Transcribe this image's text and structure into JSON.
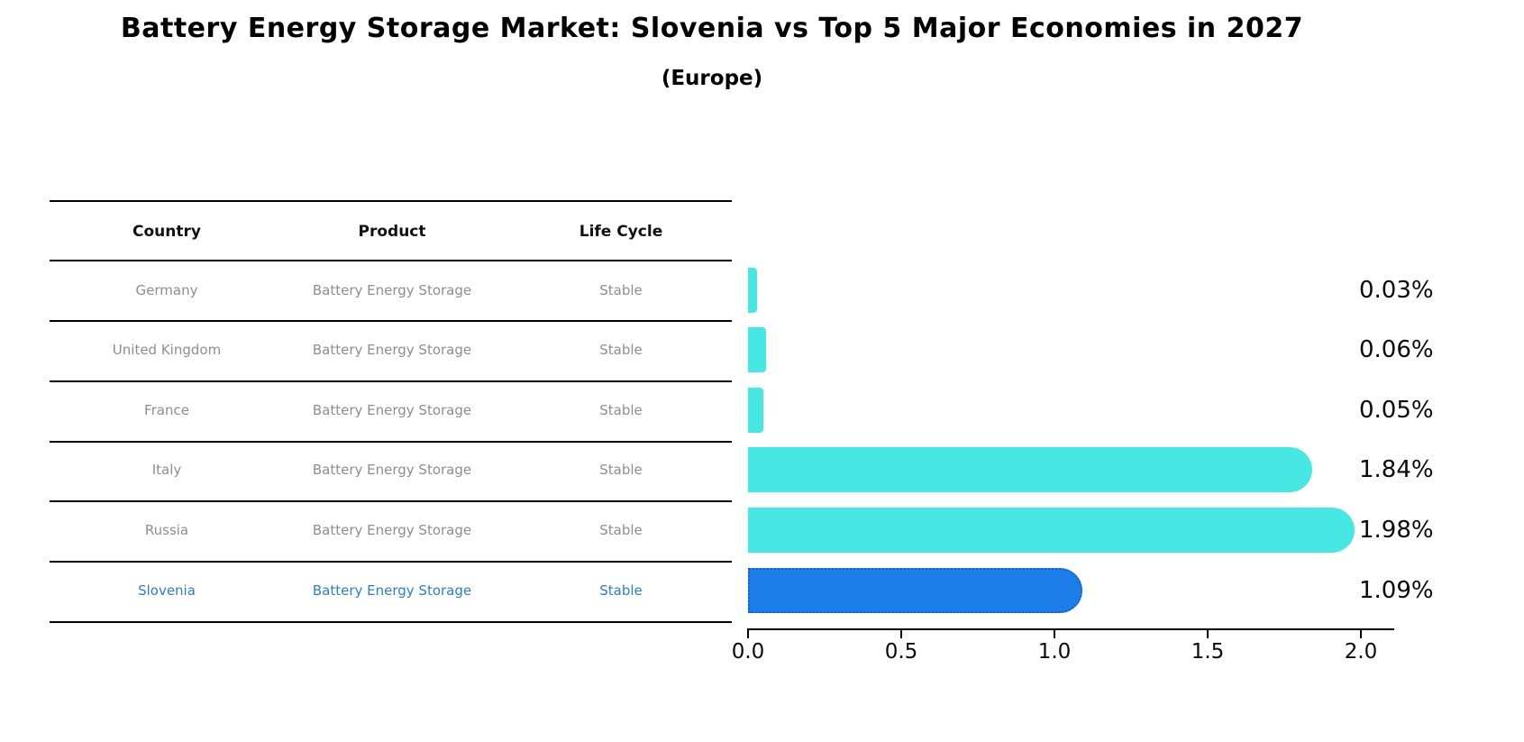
{
  "title": "Battery Energy Storage Market: Slovenia vs Top 5 Major Economies in 2027",
  "subtitle": "(Europe)",
  "table": {
    "headers": {
      "country": "Country",
      "product": "Product",
      "life_cycle": "Life Cycle"
    },
    "rows": [
      {
        "country": "Germany",
        "product": "Battery Energy Storage",
        "life_cycle": "Stable",
        "highlight": false
      },
      {
        "country": "United Kingdom",
        "product": "Battery Energy Storage",
        "life_cycle": "Stable",
        "highlight": false
      },
      {
        "country": "France",
        "product": "Battery Energy Storage",
        "life_cycle": "Stable",
        "highlight": false
      },
      {
        "country": "Italy",
        "product": "Battery Energy Storage",
        "life_cycle": "Stable",
        "highlight": false
      },
      {
        "country": "Russia",
        "product": "Battery Energy Storage",
        "life_cycle": "Stable",
        "highlight": false
      },
      {
        "country": "Slovenia",
        "product": "Battery Energy Storage",
        "life_cycle": "Stable",
        "highlight": true
      }
    ]
  },
  "chart_data": {
    "type": "bar",
    "orientation": "horizontal",
    "title": "Battery Energy Storage Market: Slovenia vs Top 5 Major Economies in 2027 (Europe)",
    "categories": [
      "Germany",
      "United Kingdom",
      "France",
      "Italy",
      "Russia",
      "Slovenia"
    ],
    "values": [
      0.03,
      0.06,
      0.05,
      1.84,
      1.98,
      1.09
    ],
    "value_labels": [
      "0.03%",
      "0.06%",
      "0.05%",
      "1.84%",
      "1.98%",
      "1.09%"
    ],
    "x_ticks": [
      "0.0",
      "0.5",
      "1.0",
      "1.5",
      "2.0"
    ],
    "xlim": [
      0,
      2.0
    ],
    "xlabel": "",
    "ylabel": "",
    "grid": false,
    "legend": false,
    "highlight_index": 5,
    "bar_color": "#47e8e4",
    "highlight_color": "#1e7ee9",
    "highlight_border_color": "#1260d0",
    "highlight_text_color": "#2d7fc7"
  },
  "colors": {
    "background": "#ffffff",
    "title_text": "#000000",
    "table_header_text": "#111111",
    "table_row_text": "#8e8e8e",
    "axis": "#000000"
  }
}
